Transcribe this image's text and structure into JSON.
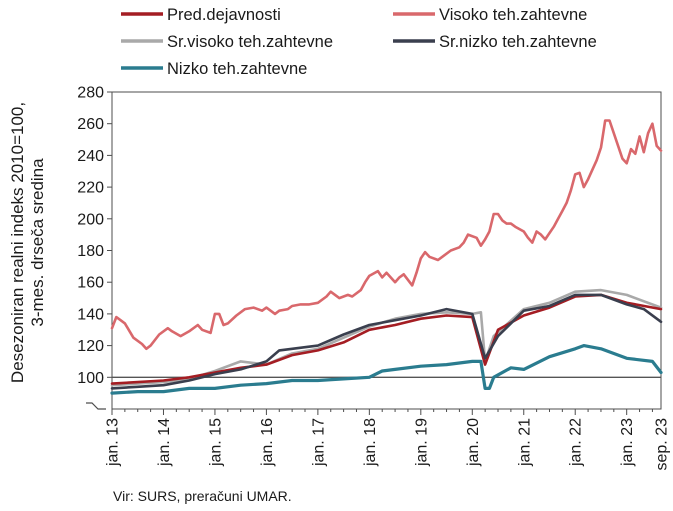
{
  "chart_data": {
    "type": "line",
    "title": "",
    "ylabel_lines": [
      "Desezoniran realni indeks 2010=100,",
      "3-mes. drseča sredina"
    ],
    "xlabel": "",
    "ylim": [
      80,
      280
    ],
    "yticks": [
      100,
      120,
      140,
      160,
      180,
      200,
      220,
      240,
      260,
      280
    ],
    "reference_line": 100,
    "x_start": "jan. 13",
    "x_end": "sep. 23",
    "x_tick_labels": [
      "jan. 13",
      "jan. 14",
      "jan. 15",
      "jan. 16",
      "jan. 17",
      "jan. 18",
      "jan. 19",
      "jan. 20",
      "jan. 21",
      "jan. 22",
      "jan. 23",
      "sep. 23"
    ],
    "source": "Vir: SURS, preračuni UMAR.",
    "legend_position": "top",
    "series": [
      {
        "name": "Pred.dejavnosti",
        "color": "#a41d23",
        "points": [
          [
            "jan. 13",
            96
          ],
          [
            "jul. 13",
            97
          ],
          [
            "jan. 14",
            98
          ],
          [
            "jul. 14",
            100
          ],
          [
            "jan. 15",
            103
          ],
          [
            "jul. 15",
            106
          ],
          [
            "jan. 16",
            108
          ],
          [
            "jul. 16",
            114
          ],
          [
            "jan. 17",
            117
          ],
          [
            "jul. 17",
            122
          ],
          [
            "jan. 18",
            130
          ],
          [
            "jul. 18",
            133
          ],
          [
            "jan. 19",
            137
          ],
          [
            "jul. 19",
            139
          ],
          [
            "jan. 20",
            138
          ],
          [
            "apr. 20",
            108
          ],
          [
            "jul. 20",
            130
          ],
          [
            "jan. 21",
            139
          ],
          [
            "jul. 21",
            144
          ],
          [
            "jan. 22",
            151
          ],
          [
            "jul. 22",
            152
          ],
          [
            "jan. 23",
            147
          ],
          [
            "sep. 23",
            143
          ]
        ]
      },
      {
        "name": "Visoko teh.zahtevne",
        "color": "#d9686c",
        "points": [
          [
            "jan. 13",
            131
          ],
          [
            "feb. 13",
            138
          ],
          [
            "mar. 13",
            136
          ],
          [
            "apr. 13",
            134
          ],
          [
            "jun. 13",
            125
          ],
          [
            "aug. 13",
            121
          ],
          [
            "sep. 13",
            118
          ],
          [
            "oct. 13",
            120
          ],
          [
            "dec. 13",
            127
          ],
          [
            "feb. 14",
            131
          ],
          [
            "mar. 14",
            129
          ],
          [
            "may 14",
            126
          ],
          [
            "jul. 14",
            129
          ],
          [
            "sep. 14",
            133
          ],
          [
            "oct. 14",
            130
          ],
          [
            "dec. 14",
            128
          ],
          [
            "jan. 15",
            140
          ],
          [
            "feb. 15",
            140
          ],
          [
            "mar. 15",
            133
          ],
          [
            "apr. 15",
            134
          ],
          [
            "jun. 15",
            139
          ],
          [
            "aug. 15",
            143
          ],
          [
            "oct. 15",
            144
          ],
          [
            "dec. 15",
            142
          ],
          [
            "jan. 16",
            144
          ],
          [
            "mar. 16",
            140
          ],
          [
            "apr. 16",
            142
          ],
          [
            "jun. 16",
            143
          ],
          [
            "jul. 16",
            145
          ],
          [
            "sep. 16",
            146
          ],
          [
            "nov. 16",
            146
          ],
          [
            "jan. 17",
            147
          ],
          [
            "mar. 17",
            151
          ],
          [
            "apr. 17",
            154
          ],
          [
            "jun. 17",
            150
          ],
          [
            "aug. 17",
            152
          ],
          [
            "sep. 17",
            151
          ],
          [
            "nov. 17",
            155
          ],
          [
            "dec. 17",
            160
          ],
          [
            "jan. 18",
            164
          ],
          [
            "mar. 18",
            167
          ],
          [
            "apr. 18",
            163
          ],
          [
            "may 18",
            166
          ],
          [
            "jul. 18",
            160
          ],
          [
            "aug. 18",
            163
          ],
          [
            "sep. 18",
            165
          ],
          [
            "nov. 18",
            158
          ],
          [
            "dec. 18",
            166
          ],
          [
            "jan. 19",
            175
          ],
          [
            "feb. 19",
            179
          ],
          [
            "mar. 19",
            176
          ],
          [
            "may 19",
            174
          ],
          [
            "jun. 19",
            176
          ],
          [
            "aug. 19",
            180
          ],
          [
            "oct. 19",
            182
          ],
          [
            "nov. 19",
            185
          ],
          [
            "dec. 19",
            190
          ],
          [
            "feb. 20",
            188
          ],
          [
            "mar. 20",
            183
          ],
          [
            "apr. 20",
            187
          ],
          [
            "may 20",
            192
          ],
          [
            "jun. 20",
            203
          ],
          [
            "jul. 20",
            203
          ],
          [
            "aug. 20",
            199
          ],
          [
            "sep. 20",
            197
          ],
          [
            "oct. 20",
            197
          ],
          [
            "nov. 20",
            195
          ],
          [
            "jan. 21",
            192
          ],
          [
            "feb. 21",
            188
          ],
          [
            "mar. 21",
            185
          ],
          [
            "apr. 21",
            192
          ],
          [
            "may 21",
            190
          ],
          [
            "jun. 21",
            187
          ],
          [
            "aug. 21",
            195
          ],
          [
            "sep. 21",
            200
          ],
          [
            "oct. 21",
            205
          ],
          [
            "nov. 21",
            210
          ],
          [
            "dec. 21",
            218
          ],
          [
            "jan. 22",
            228
          ],
          [
            "feb. 22",
            229
          ],
          [
            "mar. 22",
            220
          ],
          [
            "apr. 22",
            225
          ],
          [
            "jun. 22",
            237
          ],
          [
            "jul. 22",
            245
          ],
          [
            "aug. 22",
            262
          ],
          [
            "sep. 22",
            262
          ],
          [
            "oct. 22",
            254
          ],
          [
            "dec. 22",
            238
          ],
          [
            "jan. 23",
            235
          ],
          [
            "feb. 23",
            244
          ],
          [
            "mar. 23",
            241
          ],
          [
            "apr. 23",
            252
          ],
          [
            "may 23",
            242
          ],
          [
            "jun. 23",
            254
          ],
          [
            "jul. 23",
            260
          ],
          [
            "aug. 23",
            246
          ],
          [
            "sep. 23",
            243
          ]
        ]
      },
      {
        "name": "Sr.visoko teh.zahtevne",
        "color": "#a9a9a9",
        "points": [
          [
            "jan. 13",
            95
          ],
          [
            "jul. 13",
            96
          ],
          [
            "jan. 14",
            97
          ],
          [
            "jul. 14",
            99
          ],
          [
            "jan. 15",
            104
          ],
          [
            "jul. 15",
            110
          ],
          [
            "jan. 16",
            108
          ],
          [
            "jul. 16",
            115
          ],
          [
            "jan. 17",
            118
          ],
          [
            "jul. 17",
            125
          ],
          [
            "jan. 18",
            132
          ],
          [
            "jul. 18",
            137
          ],
          [
            "jan. 19",
            140
          ],
          [
            "jul. 19",
            141
          ],
          [
            "jan. 20",
            140
          ],
          [
            "mar. 20",
            141
          ],
          [
            "apr. 20",
            110
          ],
          [
            "jun. 20",
            126
          ],
          [
            "jan. 21",
            143
          ],
          [
            "jul. 21",
            147
          ],
          [
            "jan. 22",
            154
          ],
          [
            "jul. 22",
            155
          ],
          [
            "jan. 23",
            152
          ],
          [
            "sep. 23",
            144
          ]
        ]
      },
      {
        "name": "Sr.nizko teh.zahtevne",
        "color": "#3a3f4e",
        "points": [
          [
            "jan. 13",
            93
          ],
          [
            "jul. 13",
            94
          ],
          [
            "jan. 14",
            95
          ],
          [
            "jul. 14",
            98
          ],
          [
            "jan. 15",
            102
          ],
          [
            "jul. 15",
            105
          ],
          [
            "jan. 16",
            110
          ],
          [
            "apr. 16",
            117
          ],
          [
            "jan. 17",
            120
          ],
          [
            "jul. 17",
            127
          ],
          [
            "jan. 18",
            133
          ],
          [
            "jul. 18",
            136
          ],
          [
            "jan. 19",
            139
          ],
          [
            "jul. 19",
            143
          ],
          [
            "jan. 20",
            140
          ],
          [
            "apr. 20",
            112
          ],
          [
            "jul. 20",
            126
          ],
          [
            "jan. 21",
            142
          ],
          [
            "jul. 21",
            145
          ],
          [
            "jan. 22",
            152
          ],
          [
            "jul. 22",
            152
          ],
          [
            "jan. 23",
            146
          ],
          [
            "may 23",
            143
          ],
          [
            "sep. 23",
            135
          ]
        ]
      },
      {
        "name": "Nizko teh.zahtevne",
        "color": "#2a7c8f",
        "points": [
          [
            "jan. 13",
            90
          ],
          [
            "jul. 13",
            91
          ],
          [
            "jan. 14",
            91
          ],
          [
            "jul. 14",
            93
          ],
          [
            "jan. 15",
            93
          ],
          [
            "jul. 15",
            95
          ],
          [
            "jan. 16",
            96
          ],
          [
            "jul. 16",
            98
          ],
          [
            "jan. 17",
            98
          ],
          [
            "jul. 17",
            99
          ],
          [
            "jan. 18",
            100
          ],
          [
            "apr. 18",
            104
          ],
          [
            "jul. 18",
            105
          ],
          [
            "jan. 19",
            107
          ],
          [
            "jul. 19",
            108
          ],
          [
            "jan. 20",
            110
          ],
          [
            "mar. 20",
            110
          ],
          [
            "apr. 20",
            93
          ],
          [
            "may 20",
            93
          ],
          [
            "jun. 20",
            100
          ],
          [
            "oct. 20",
            106
          ],
          [
            "jan. 21",
            105
          ],
          [
            "jul. 21",
            113
          ],
          [
            "jan. 22",
            118
          ],
          [
            "mar. 22",
            120
          ],
          [
            "jul. 22",
            118
          ],
          [
            "jan. 23",
            112
          ],
          [
            "jul. 23",
            110
          ],
          [
            "sep. 23",
            103
          ]
        ]
      }
    ]
  }
}
